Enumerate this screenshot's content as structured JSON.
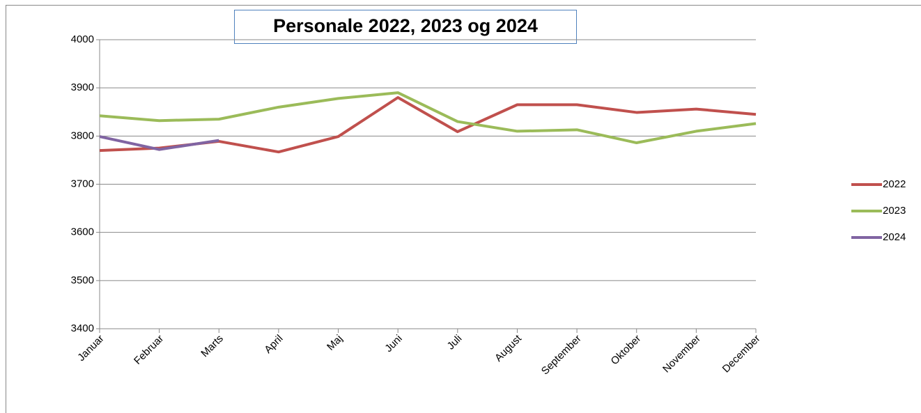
{
  "chart_data": {
    "type": "line",
    "title": "Personale  2022, 2023 og 2024",
    "categories": [
      "Januar",
      "Februar",
      "Marts",
      "April",
      "Maj",
      "Juni",
      "Juli",
      "August",
      "September",
      "Oktober",
      "November",
      "December"
    ],
    "series": [
      {
        "name": "2022",
        "color": "#c0504d",
        "values": [
          3770,
          3775,
          3789,
          3767,
          3799,
          3880,
          3809,
          3865,
          3865,
          3849,
          3856,
          3845
        ]
      },
      {
        "name": "2023",
        "color": "#9bbb59",
        "values": [
          3842,
          3832,
          3835,
          3860,
          3878,
          3890,
          3830,
          3810,
          3813,
          3786,
          3810,
          3826
        ]
      },
      {
        "name": "2024",
        "color": "#8064a2",
        "values": [
          3799,
          3772,
          3791,
          null,
          null,
          null,
          null,
          null,
          null,
          null,
          null,
          null
        ]
      }
    ],
    "ylim": [
      3400,
      4000
    ],
    "yticks": [
      3400,
      3500,
      3600,
      3700,
      3800,
      3900,
      4000
    ],
    "grid": true,
    "legend": "right"
  }
}
